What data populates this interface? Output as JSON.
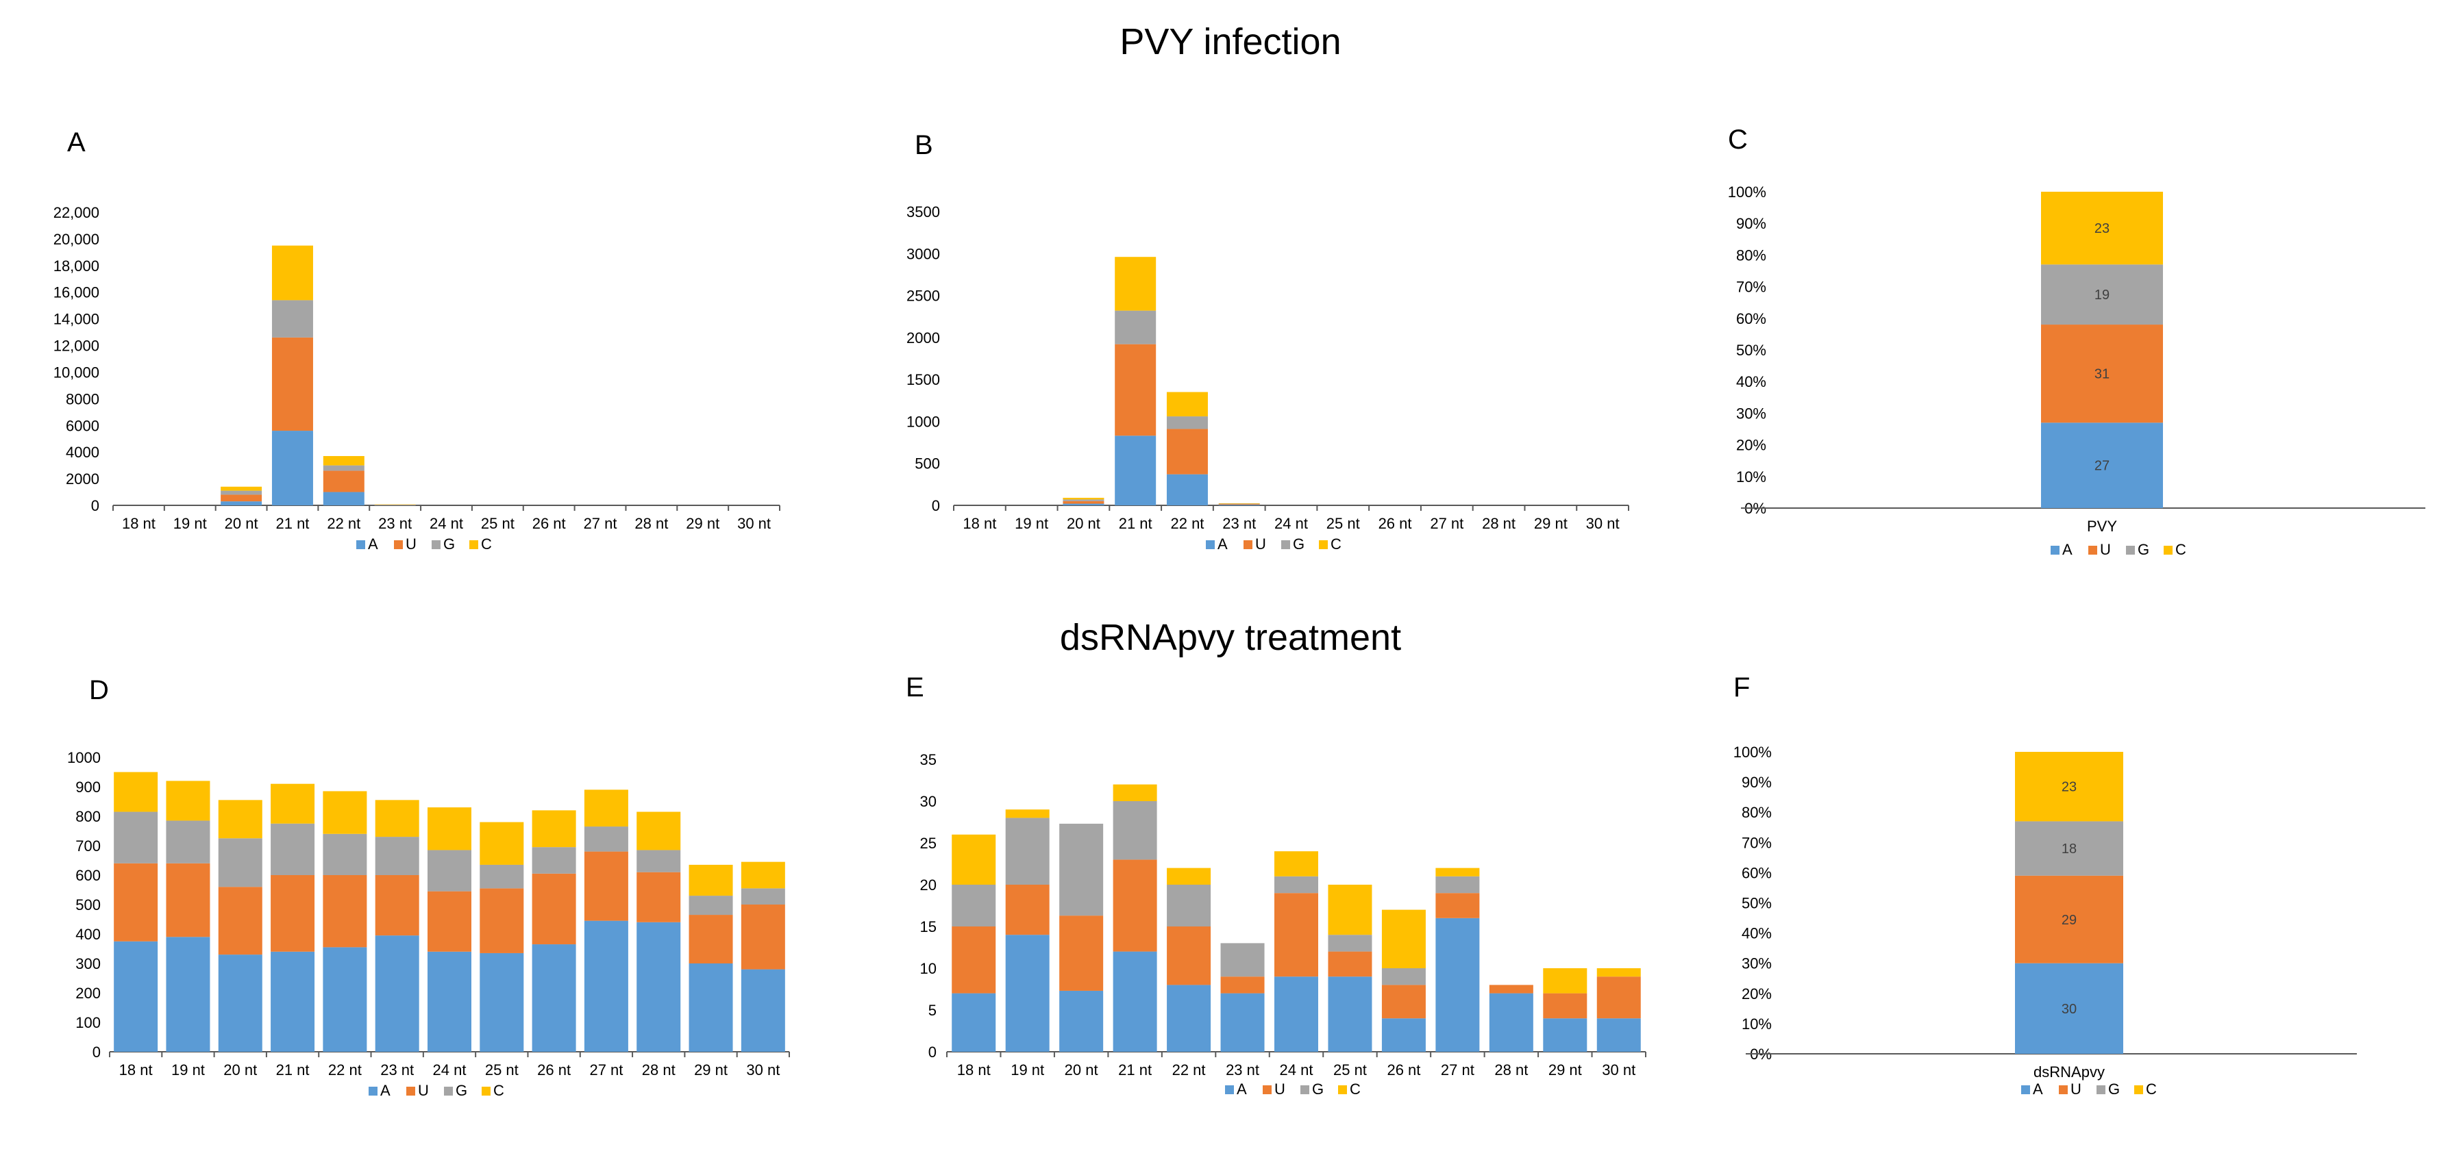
{
  "titles": {
    "top": "PVY infection",
    "bottom": "dsRNApvy treatment"
  },
  "colors": {
    "A": "#5b9bd5",
    "U": "#ed7d31",
    "G": "#a5a5a5",
    "C": "#ffc000"
  },
  "chart_data": [
    {
      "id": "A",
      "letter": "A",
      "type": "bar",
      "stacked": true,
      "categories": [
        "18 nt",
        "19 nt",
        "20 nt",
        "21 nt",
        "22 nt",
        "23 nt",
        "24 nt",
        "25 nt",
        "26 nt",
        "27 nt",
        "28 nt",
        "29 nt",
        "30 nt"
      ],
      "series": [
        {
          "name": "A",
          "values": [
            0,
            0,
            300,
            5600,
            1000,
            20,
            0,
            0,
            0,
            0,
            0,
            0,
            0
          ]
        },
        {
          "name": "U",
          "values": [
            0,
            0,
            500,
            7000,
            1600,
            20,
            0,
            0,
            0,
            0,
            0,
            0,
            0
          ]
        },
        {
          "name": "G",
          "values": [
            0,
            0,
            300,
            2800,
            400,
            10,
            0,
            0,
            0,
            0,
            0,
            0,
            0
          ]
        },
        {
          "name": "C",
          "values": [
            0,
            0,
            300,
            4100,
            700,
            20,
            0,
            0,
            0,
            0,
            0,
            0,
            0
          ]
        }
      ],
      "ylim": [
        0,
        22000
      ],
      "yticks": [
        "0",
        "2000",
        "4000",
        "6000",
        "8000",
        "10,000",
        "12,000",
        "14,000",
        "16,000",
        "18,000",
        "20,000",
        "22,000"
      ],
      "ytick_values": [
        0,
        2000,
        4000,
        6000,
        8000,
        10000,
        12000,
        14000,
        16000,
        18000,
        20000,
        22000
      ],
      "legend": [
        "A",
        "U",
        "G",
        "C"
      ]
    },
    {
      "id": "B",
      "letter": "B",
      "type": "bar",
      "stacked": true,
      "categories": [
        "18 nt",
        "19 nt",
        "20 nt",
        "21 nt",
        "22 nt",
        "23 nt",
        "24 nt",
        "25 nt",
        "26 nt",
        "27 nt",
        "28 nt",
        "29 nt",
        "30 nt"
      ],
      "series": [
        {
          "name": "A",
          "values": [
            0,
            0,
            20,
            830,
            370,
            8,
            0,
            0,
            0,
            0,
            0,
            0,
            0
          ]
        },
        {
          "name": "U",
          "values": [
            0,
            0,
            30,
            1090,
            540,
            8,
            0,
            0,
            0,
            0,
            0,
            0,
            0
          ]
        },
        {
          "name": "G",
          "values": [
            0,
            0,
            20,
            400,
            150,
            4,
            0,
            0,
            0,
            0,
            0,
            0,
            0
          ]
        },
        {
          "name": "C",
          "values": [
            0,
            0,
            20,
            640,
            290,
            5,
            0,
            0,
            0,
            0,
            0,
            0,
            0
          ]
        }
      ],
      "ylim": [
        0,
        3500
      ],
      "yticks": [
        "0",
        "500",
        "1000",
        "1500",
        "2000",
        "2500",
        "3000",
        "3500"
      ],
      "ytick_values": [
        0,
        500,
        1000,
        1500,
        2000,
        2500,
        3000,
        3500
      ],
      "legend": [
        "A",
        "U",
        "G",
        "C"
      ]
    },
    {
      "id": "C",
      "letter": "C",
      "type": "bar",
      "stacked": true,
      "percent": true,
      "categories": [
        "PVY"
      ],
      "series": [
        {
          "name": "A",
          "values": [
            27
          ]
        },
        {
          "name": "U",
          "values": [
            31
          ]
        },
        {
          "name": "G",
          "values": [
            19
          ]
        },
        {
          "name": "C",
          "values": [
            23
          ]
        }
      ],
      "data_labels": [
        "27",
        "31",
        "19",
        "23"
      ],
      "ylim": [
        0,
        100
      ],
      "yticks": [
        "0%",
        "10%",
        "20%",
        "30%",
        "40%",
        "50%",
        "60%",
        "70%",
        "80%",
        "90%",
        "100%"
      ],
      "ytick_values": [
        0,
        10,
        20,
        30,
        40,
        50,
        60,
        70,
        80,
        90,
        100
      ],
      "legend": [
        "A",
        "U",
        "G",
        "C"
      ]
    },
    {
      "id": "D",
      "letter": "D",
      "type": "bar",
      "stacked": true,
      "categories": [
        "18 nt",
        "19 nt",
        "20 nt",
        "21 nt",
        "22 nt",
        "23 nt",
        "24 nt",
        "25 nt",
        "26 nt",
        "27 nt",
        "28 nt",
        "29 nt",
        "30 nt"
      ],
      "series": [
        {
          "name": "A",
          "values": [
            375,
            390,
            330,
            340,
            355,
            395,
            340,
            335,
            365,
            445,
            440,
            300,
            280
          ]
        },
        {
          "name": "U",
          "values": [
            265,
            250,
            230,
            260,
            245,
            205,
            205,
            220,
            240,
            235,
            170,
            165,
            220
          ]
        },
        {
          "name": "G",
          "values": [
            175,
            145,
            165,
            175,
            140,
            130,
            140,
            80,
            90,
            85,
            75,
            65,
            55
          ]
        },
        {
          "name": "C",
          "values": [
            135,
            135,
            130,
            135,
            145,
            125,
            145,
            145,
            125,
            125,
            130,
            105,
            90
          ]
        }
      ],
      "ylim": [
        0,
        1000
      ],
      "yticks": [
        "0",
        "100",
        "200",
        "300",
        "400",
        "500",
        "600",
        "700",
        "800",
        "900",
        "1000"
      ],
      "ytick_values": [
        0,
        100,
        200,
        300,
        400,
        500,
        600,
        700,
        800,
        900,
        1000
      ],
      "legend": [
        "A",
        "U",
        "G",
        "C"
      ]
    },
    {
      "id": "E",
      "letter": "E",
      "type": "bar",
      "stacked": true,
      "categories": [
        "18 nt",
        "19 nt",
        "20 nt",
        "21 nt",
        "22 nt",
        "23 nt",
        "24 nt",
        "25 nt",
        "26 nt",
        "27 nt",
        "28 nt",
        "29 nt",
        "30 nt"
      ],
      "series": [
        {
          "name": "A",
          "values": [
            7,
            14,
            7.3,
            12,
            8,
            7,
            9,
            9,
            4,
            16,
            7,
            4,
            4
          ]
        },
        {
          "name": "U",
          "values": [
            8,
            6,
            9,
            11,
            7,
            2,
            10,
            3,
            4,
            3,
            1,
            3,
            5
          ]
        },
        {
          "name": "G",
          "values": [
            5,
            8,
            11,
            7,
            5,
            4,
            2,
            2,
            2,
            2,
            0,
            0,
            0
          ]
        },
        {
          "name": "C",
          "values": [
            6,
            1,
            0,
            2,
            2,
            0,
            3,
            6,
            7,
            1,
            0,
            3,
            1
          ]
        }
      ],
      "ylim": [
        0,
        35
      ],
      "yticks": [
        "0",
        "5",
        "10",
        "15",
        "20",
        "25",
        "30",
        "35"
      ],
      "ytick_values": [
        0,
        5,
        10,
        15,
        20,
        25,
        30,
        35
      ],
      "legend": [
        "A",
        "U",
        "G",
        "C"
      ]
    },
    {
      "id": "F",
      "letter": "F",
      "type": "bar",
      "stacked": true,
      "percent": true,
      "categories": [
        "dsRNApvy"
      ],
      "series": [
        {
          "name": "A",
          "values": [
            30
          ]
        },
        {
          "name": "U",
          "values": [
            29
          ]
        },
        {
          "name": "G",
          "values": [
            18
          ]
        },
        {
          "name": "C",
          "values": [
            23
          ]
        }
      ],
      "data_labels": [
        "30",
        "29",
        "18",
        "23"
      ],
      "ylim": [
        0,
        100
      ],
      "yticks": [
        "0%",
        "10%",
        "20%",
        "30%",
        "40%",
        "50%",
        "60%",
        "70%",
        "80%",
        "90%",
        "100%"
      ],
      "ytick_values": [
        0,
        10,
        20,
        30,
        40,
        50,
        60,
        70,
        80,
        90,
        100
      ],
      "legend": [
        "A",
        "U",
        "G",
        "C"
      ]
    }
  ]
}
